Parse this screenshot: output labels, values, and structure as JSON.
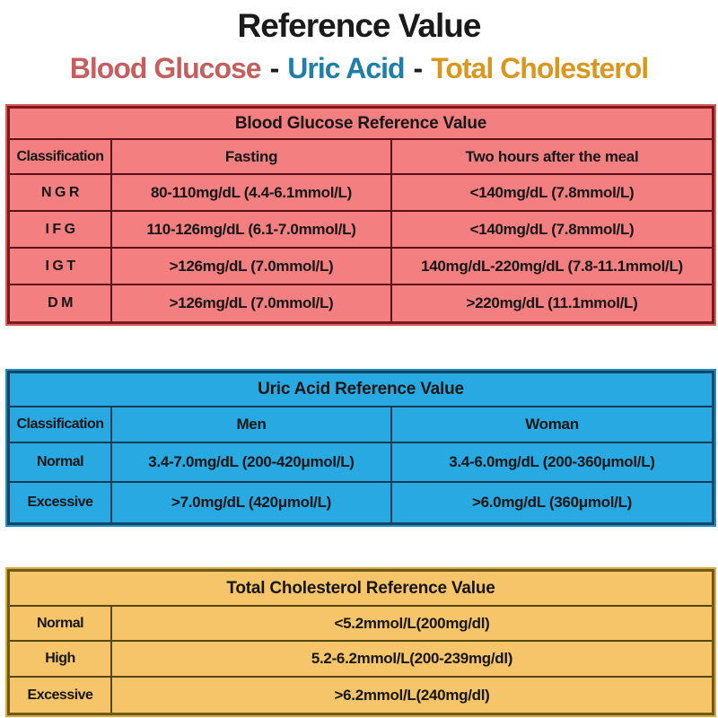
{
  "page": {
    "title": "Reference Value",
    "subtitle": {
      "part1": "Blood Glucose",
      "part2": "Uric Acid",
      "part3": "Total Cholesterol",
      "separator": "-"
    },
    "colors": {
      "blood_glucose_accent": "#C55F5F",
      "uric_acid_accent": "#1F7FA8",
      "cholesterol_accent": "#D8981F"
    }
  },
  "blood_glucose_table": {
    "title": "Blood Glucose Reference Value",
    "colors": {
      "background": "#F47F80",
      "border": "#7E191B",
      "grid": "#571114",
      "edge": "#D65C5C"
    },
    "headers": {
      "c1": "Classification",
      "c2": "Fasting",
      "c3": "Two hours after the meal"
    },
    "rows": [
      {
        "c1": "N G R",
        "c2": "80-110mg/dL (4.4-6.1mmol/L)",
        "c3": "<140mg/dL (7.8mmol/L)"
      },
      {
        "c1": "I F G",
        "c2": "110-126mg/dL (6.1-7.0mmol/L)",
        "c3": "<140mg/dL (7.8mmol/L)"
      },
      {
        "c1": "I G T",
        "c2": ">126mg/dL (7.0mmol/L)",
        "c3": "140mg/dL-220mg/dL (7.8-11.1mmol/L)"
      },
      {
        "c1": "D M",
        "c2": ">126mg/dL (7.0mmol/L)",
        "c3": ">220mg/dL (11.1mmol/L)"
      }
    ]
  },
  "uric_acid_table": {
    "title": "Uric Acid Reference Value",
    "colors": {
      "background": "#29A9E1",
      "border": "#17455F",
      "grid": "#143C54",
      "edge": "#1F8EC8"
    },
    "headers": {
      "c1": "Classification",
      "c2": "Men",
      "c3": "Woman"
    },
    "rows": [
      {
        "c1": "Normal",
        "c2": "3.4-7.0mg/dL (200-420μmol/L)",
        "c3": "3.4-6.0mg/dL (200-360μmol/L)"
      },
      {
        "c1": "Excessive",
        "c2": ">7.0mg/dL (420μmol/L)",
        "c3": ">6.0mg/dL (360μmol/L)"
      }
    ]
  },
  "total_cholesterol_table": {
    "title": "Total Cholesterol Reference Value",
    "colors": {
      "background": "#F6C469",
      "border": "#6E5A15",
      "grid": "#55460F",
      "edge": "#D9A73E"
    },
    "rows": [
      {
        "c1": "Normal",
        "c2": "<5.2mmol/L(200mg/dl)"
      },
      {
        "c1": "High",
        "c2": "5.2-6.2mmol/L(200-239mg/dl)"
      },
      {
        "c1": "Excessive",
        "c2": ">6.2mmol/L(240mg/dl)"
      }
    ]
  }
}
